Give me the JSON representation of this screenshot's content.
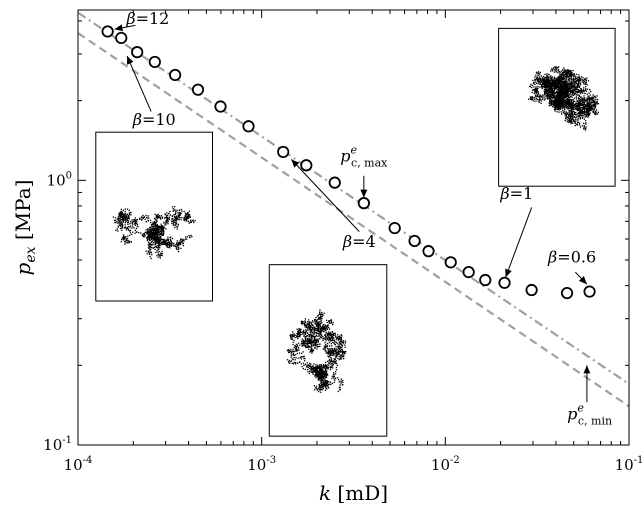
{
  "chart_data": {
    "type": "scatter",
    "x_scale": "log",
    "y_scale": "log",
    "xlim": [
      0.0001,
      0.1
    ],
    "ylim": [
      0.1,
      4.4
    ],
    "x_ticks": [
      {
        "value": 0.0001,
        "base": "10",
        "exp": "-4"
      },
      {
        "value": 0.001,
        "base": "10",
        "exp": "-3"
      },
      {
        "value": 0.01,
        "base": "10",
        "exp": "-2"
      },
      {
        "value": 0.1,
        "base": "10",
        "exp": "-1"
      }
    ],
    "y_ticks": [
      {
        "value": 0.1,
        "base": "10",
        "exp": "-1"
      },
      {
        "value": 1,
        "base": "10",
        "exp": "0"
      }
    ],
    "xlabel": {
      "var": "k",
      "unit": "[mD]"
    },
    "ylabel": {
      "var": "p",
      "sub": "ex",
      "unit": "[MPa]"
    },
    "series": [
      {
        "marker": "open-circle",
        "points": [
          [
            0.000145,
            3.65
          ],
          [
            0.000172,
            3.45
          ],
          [
            0.00021,
            3.05
          ],
          [
            0.000262,
            2.8
          ],
          [
            0.000338,
            2.5
          ],
          [
            0.00045,
            2.2
          ],
          [
            0.000597,
            1.9
          ],
          [
            0.000848,
            1.6
          ],
          [
            0.00131,
            1.28
          ],
          [
            0.00175,
            1.14
          ],
          [
            0.0025,
            0.98
          ],
          [
            0.0036,
            0.82
          ],
          [
            0.0053,
            0.66
          ],
          [
            0.0068,
            0.59
          ],
          [
            0.0081,
            0.54
          ],
          [
            0.0107,
            0.49
          ],
          [
            0.0134,
            0.45
          ],
          [
            0.0165,
            0.42
          ],
          [
            0.021,
            0.41
          ],
          [
            0.0295,
            0.385
          ],
          [
            0.046,
            0.375
          ],
          [
            0.061,
            0.38
          ]
        ]
      }
    ],
    "lines": [
      {
        "style": "dash-dot",
        "color": "#a0a0a0",
        "from": [
          0.0001,
          4.3
        ],
        "to": [
          0.1,
          0.17
        ]
      },
      {
        "style": "dashed",
        "color": "#a0a0a0",
        "from": [
          0.0001,
          3.6
        ],
        "to": [
          0.1,
          0.14
        ]
      }
    ],
    "annotations": [
      {
        "id": "b12",
        "label": "β=12",
        "text_at": [
          0.00024,
          3.9
        ],
        "arrow_from": [
          0.000205,
          3.85
        ],
        "arrow_to": [
          0.000158,
          3.72
        ]
      },
      {
        "id": "b10",
        "label": "β=10",
        "text_at": [
          0.00026,
          1.62
        ],
        "arrow_from": [
          0.00025,
          1.82
        ],
        "arrow_to": [
          0.000185,
          2.95
        ]
      },
      {
        "id": "b4",
        "label": "β=4",
        "text_at": [
          0.0034,
          0.56
        ],
        "arrow_from": [
          0.0034,
          0.64
        ],
        "arrow_to": [
          0.00145,
          1.2
        ]
      },
      {
        "id": "b1",
        "label": "β=1",
        "text_at": [
          0.0245,
          0.85
        ],
        "arrow_from": [
          0.0295,
          0.79
        ],
        "arrow_to": [
          0.0213,
          0.43
        ]
      },
      {
        "id": "b06",
        "label": "β=0.6",
        "text_at": [
          0.049,
          0.49
        ],
        "arrow_from": [
          0.051,
          0.45
        ],
        "arrow_to": [
          0.059,
          0.405
        ]
      },
      {
        "id": "pmax",
        "label_base": "p",
        "label_sup": "e",
        "label_sub": "c, max",
        "text_at": [
          0.0036,
          1.18
        ],
        "arrow_from": [
          0.0036,
          1.04
        ],
        "arrow_to": [
          0.0036,
          0.86
        ]
      },
      {
        "id": "pmin",
        "label_base": "p",
        "label_sup": "e",
        "label_sub": "c, min",
        "text_at": [
          0.061,
          0.125
        ],
        "arrow_from": [
          0.059,
          0.145
        ],
        "arrow_to": [
          0.059,
          0.2
        ]
      }
    ],
    "insets": [
      {
        "id": "inset-beta10",
        "anchor": [
          0.000125,
          1.52
        ],
        "corner": [
          0.00054,
          0.35
        ],
        "seed": 11,
        "steps": 1100
      },
      {
        "id": "inset-beta4",
        "anchor": [
          0.0011,
          0.48
        ],
        "corner": [
          0.0048,
          0.108
        ],
        "seed": 4,
        "steps": 1500
      },
      {
        "id": "inset-beta1",
        "anchor": [
          0.0195,
          3.75
        ],
        "corner": [
          0.084,
          0.95
        ],
        "seed": 1,
        "steps": 2600
      }
    ],
    "colors": {
      "markers": "#000000",
      "guide_lines": "#a0a0a0",
      "clusters": "#000000"
    }
  }
}
